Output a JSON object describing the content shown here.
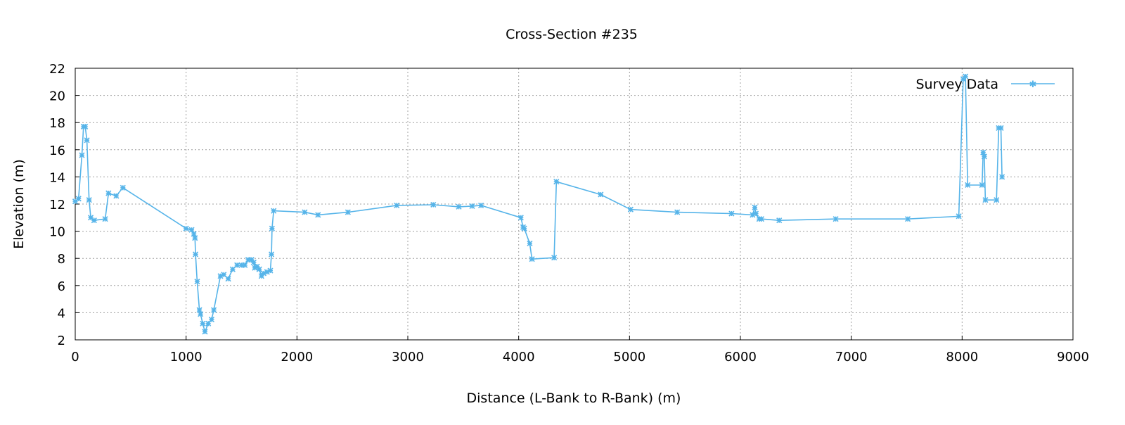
{
  "chart_data": {
    "type": "line",
    "title": "Cross-Section #235",
    "xlabel": "Distance (L-Bank to R-Bank) (m)",
    "ylabel": "Elevation (m)",
    "xlim": [
      0,
      9000
    ],
    "ylim": [
      2,
      22
    ],
    "xticks": [
      0,
      1000,
      2000,
      3000,
      4000,
      5000,
      6000,
      7000,
      8000,
      9000
    ],
    "yticks": [
      2,
      4,
      6,
      8,
      10,
      12,
      14,
      16,
      18,
      20,
      22
    ],
    "grid": true,
    "legend_position": "top-right",
    "color": "#56b4e9",
    "series": [
      {
        "name": "Survey Data",
        "x": [
          0,
          30,
          60,
          75,
          90,
          105,
          125,
          140,
          170,
          270,
          300,
          370,
          430,
          1000,
          1050,
          1070,
          1080,
          1085,
          1100,
          1120,
          1130,
          1150,
          1170,
          1200,
          1230,
          1250,
          1310,
          1340,
          1380,
          1420,
          1460,
          1500,
          1530,
          1560,
          1590,
          1610,
          1620,
          1640,
          1660,
          1680,
          1700,
          1730,
          1760,
          1770,
          1775,
          1790,
          2070,
          2190,
          2460,
          2900,
          3230,
          3460,
          3580,
          3660,
          4020,
          4040,
          4050,
          4100,
          4120,
          4320,
          4340,
          4740,
          5010,
          5430,
          5920,
          6110,
          6130,
          6140,
          6170,
          6190,
          6350,
          6860,
          7510,
          7970,
          8010,
          8030,
          8050,
          8180,
          8190,
          8200,
          8210,
          8310,
          8330,
          8350,
          8360
        ],
        "y": [
          12.2,
          12.4,
          15.6,
          17.7,
          17.7,
          16.7,
          12.3,
          11.0,
          10.8,
          10.9,
          12.8,
          12.6,
          13.2,
          10.2,
          10.1,
          9.8,
          9.5,
          8.3,
          6.3,
          4.2,
          3.9,
          3.2,
          2.6,
          3.2,
          3.5,
          4.2,
          6.7,
          6.8,
          6.5,
          7.2,
          7.5,
          7.5,
          7.5,
          7.9,
          7.9,
          7.7,
          7.3,
          7.4,
          7.2,
          6.7,
          6.9,
          7.0,
          7.1,
          8.3,
          10.2,
          11.5,
          11.4,
          11.2,
          11.4,
          11.9,
          11.95,
          11.8,
          11.85,
          11.9,
          11.0,
          10.3,
          10.2,
          9.1,
          7.95,
          8.05,
          13.65,
          12.7,
          11.6,
          11.4,
          11.3,
          11.2,
          11.75,
          11.3,
          10.9,
          10.9,
          10.8,
          10.9,
          10.9,
          11.1,
          21.2,
          21.4,
          13.4,
          13.4,
          15.8,
          15.5,
          12.3,
          12.3,
          17.6,
          17.6,
          14.0
        ]
      }
    ]
  }
}
